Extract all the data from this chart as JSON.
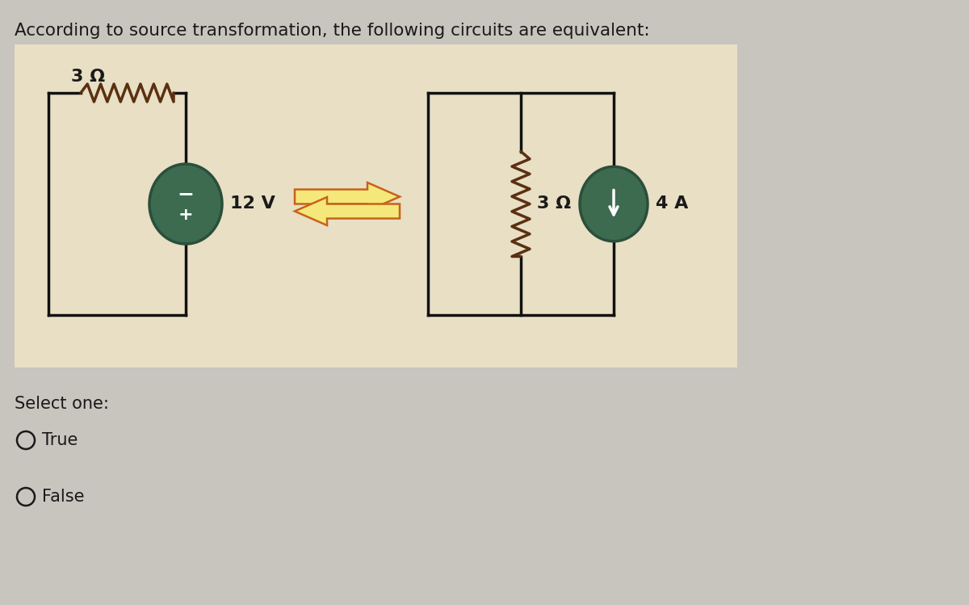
{
  "title": "According to source transformation, the following circuits are equivalent:",
  "bg_outer": "#c8c4be",
  "circuit_bg": "#e8dfc5",
  "text_color": "#1a1a1a",
  "select_text": "Select one:",
  "option_true": "True",
  "option_false": "False",
  "wire_color": "#111111",
  "resistor_color": "#5a3010",
  "source_fill": "#3d6b50",
  "source_edge": "#2a4f3a",
  "arrow_fill": "#f5e87a",
  "arrow_edge": "#c8621a",
  "circuit1": {
    "resistor_label": "3 Ω",
    "source_label": "12 V"
  },
  "circuit2": {
    "resistor_label": "3 Ω",
    "source_label": "4 A"
  }
}
